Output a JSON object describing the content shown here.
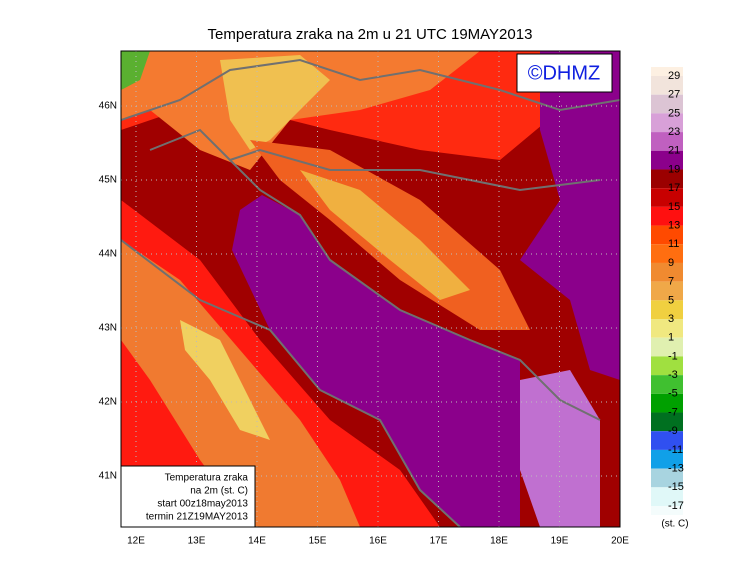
{
  "title": "Temperatura zraka na 2m u 21 UTC 19MAY2013",
  "watermark": "©DHMZ",
  "map": {
    "lat_labels": [
      "46N",
      "45N",
      "44N",
      "43N",
      "42N",
      "41N"
    ],
    "lon_labels": [
      "12E",
      "13E",
      "14E",
      "15E",
      "16E",
      "17E",
      "18E",
      "19E",
      "20E"
    ]
  },
  "info_box": [
    "Temperatura zraka",
    "na 2m (st. C)",
    "start 00z18may2013",
    "termin 21Z19MAY2013"
  ],
  "colorbar": {
    "levels": [
      29,
      27,
      25,
      23,
      21,
      19,
      17,
      15,
      13,
      11,
      9,
      7,
      5,
      3,
      1,
      -1,
      -3,
      -5,
      -7,
      -9,
      -11,
      -13,
      -15,
      -17
    ],
    "colors": [
      "#fdf0e2",
      "#f2e4dc",
      "#dcc4d4",
      "#d8a0d8",
      "#c060c0",
      "#8b008b",
      "#9b0000",
      "#c80000",
      "#ff1010",
      "#ff4a00",
      "#ff6e10",
      "#f08a30",
      "#f0a848",
      "#f0d040",
      "#f0e880",
      "#e0f0b0",
      "#a0e040",
      "#40c030",
      "#00a000",
      "#007020",
      "#3050f0",
      "#10a0e8",
      "#a8d4e0",
      "#e0f8f8",
      "#f4fcfc"
    ],
    "unit": "(st. C)"
  }
}
